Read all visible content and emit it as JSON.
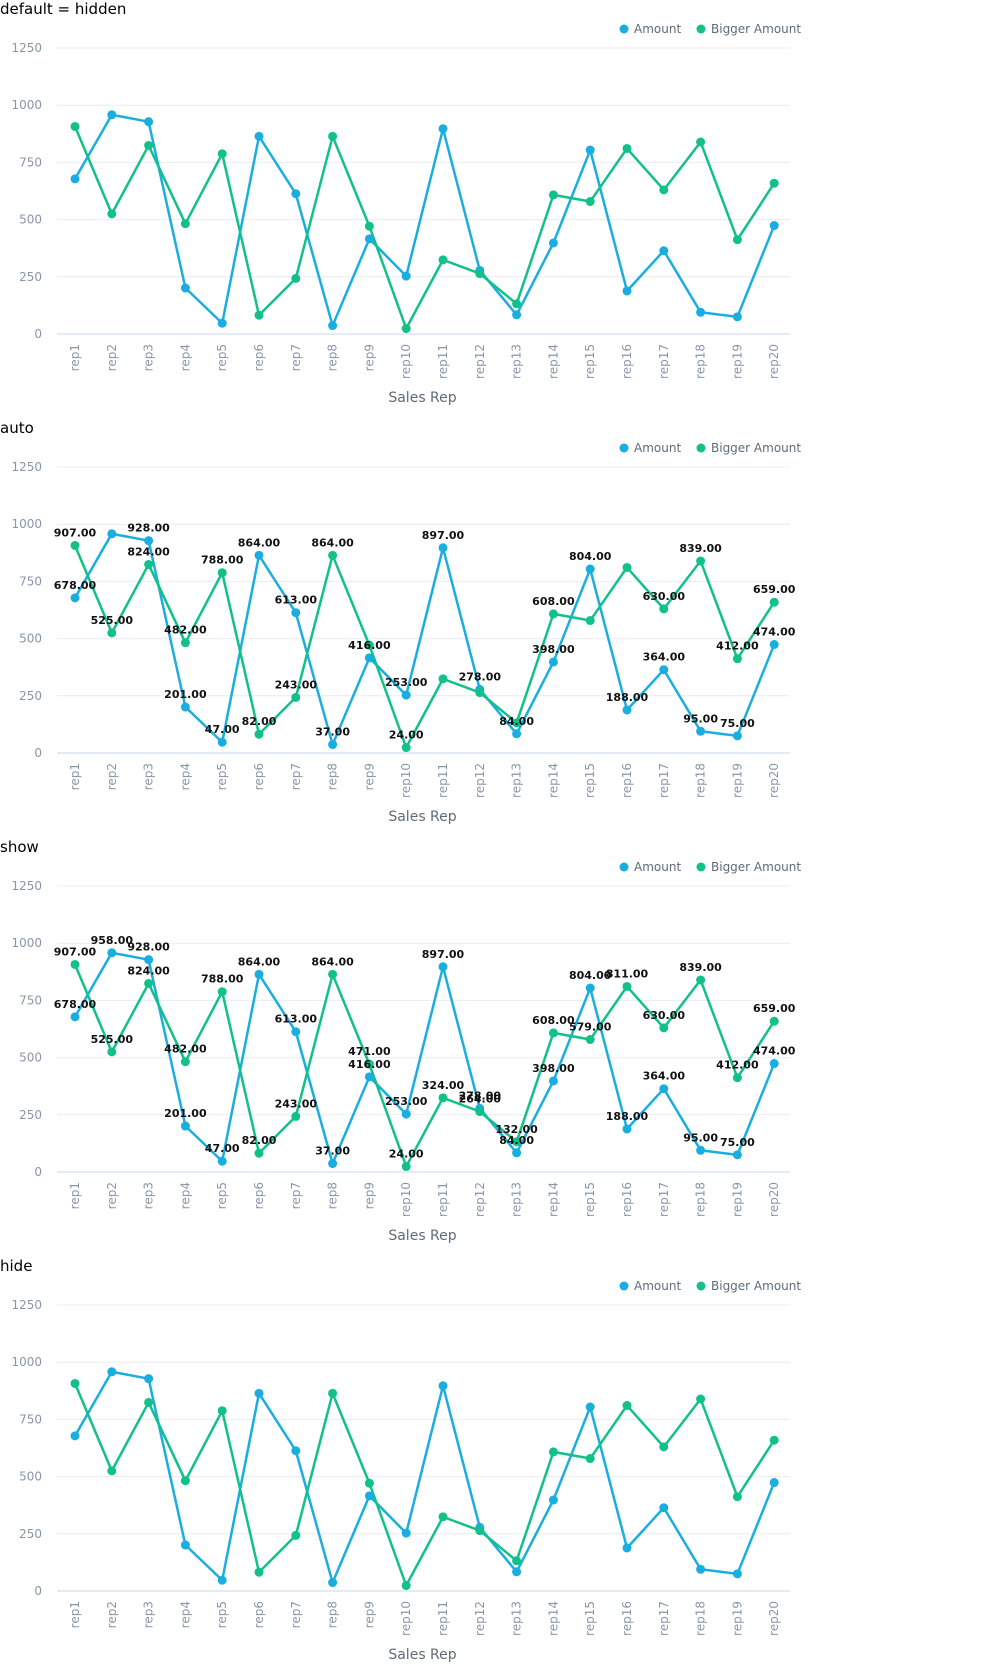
{
  "chart_data": [
    {
      "type": "line",
      "title": "default = hidden",
      "label_mode": "none",
      "categories": [
        "rep1",
        "rep2",
        "rep3",
        "rep4",
        "rep5",
        "rep6",
        "rep7",
        "rep8",
        "rep9",
        "rep10",
        "rep11",
        "rep12",
        "rep13",
        "rep14",
        "rep15",
        "rep16",
        "rep17",
        "rep18",
        "rep19",
        "rep20"
      ],
      "series": [
        {
          "name": "Amount",
          "color": "#1aaee0",
          "values": [
            678,
            958,
            928,
            201,
            47,
            864,
            613,
            37,
            416,
            253,
            897,
            278,
            84,
            398,
            804,
            188,
            364,
            95,
            75,
            474
          ]
        },
        {
          "name": "Bigger Amount",
          "color": "#12c08a",
          "values": [
            907,
            525,
            824,
            482,
            788,
            82,
            243,
            864,
            471,
            24,
            324,
            264,
            132,
            608,
            579,
            811,
            630,
            839,
            412,
            659
          ]
        }
      ],
      "xlabel": "Sales Rep",
      "ylabel": "",
      "ylim": [
        0,
        1250
      ],
      "yticks": [
        "0",
        "250",
        "500",
        "750",
        "1000",
        "1250"
      ],
      "grid": true,
      "legend": "top-right"
    },
    {
      "type": "line",
      "title": "auto",
      "label_mode": "auto",
      "categories": [
        "rep1",
        "rep2",
        "rep3",
        "rep4",
        "rep5",
        "rep6",
        "rep7",
        "rep8",
        "rep9",
        "rep10",
        "rep11",
        "rep12",
        "rep13",
        "rep14",
        "rep15",
        "rep16",
        "rep17",
        "rep18",
        "rep19",
        "rep20"
      ],
      "series": [
        {
          "name": "Amount",
          "color": "#1aaee0",
          "values": [
            678,
            958,
            928,
            201,
            47,
            864,
            613,
            37,
            416,
            253,
            897,
            278,
            84,
            398,
            804,
            188,
            364,
            95,
            75,
            474
          ]
        },
        {
          "name": "Bigger Amount",
          "color": "#12c08a",
          "values": [
            907,
            525,
            824,
            482,
            788,
            82,
            243,
            864,
            471,
            24,
            324,
            264,
            132,
            608,
            579,
            811,
            630,
            839,
            412,
            659
          ]
        }
      ],
      "labels": [
        {
          "series": 0,
          "idx": 0,
          "text": "678.00"
        },
        {
          "series": 0,
          "idx": 2,
          "text": "928.00"
        },
        {
          "series": 0,
          "idx": 3,
          "text": "201.00"
        },
        {
          "series": 0,
          "idx": 4,
          "text": "47.00"
        },
        {
          "series": 0,
          "idx": 5,
          "text": "864.00"
        },
        {
          "series": 0,
          "idx": 6,
          "text": "613.00"
        },
        {
          "series": 0,
          "idx": 7,
          "text": "37.00"
        },
        {
          "series": 0,
          "idx": 8,
          "text": "416.00"
        },
        {
          "series": 0,
          "idx": 9,
          "text": "253.00"
        },
        {
          "series": 0,
          "idx": 10,
          "text": "897.00"
        },
        {
          "series": 0,
          "idx": 11,
          "text": "278.00"
        },
        {
          "series": 0,
          "idx": 12,
          "text": "84.00"
        },
        {
          "series": 0,
          "idx": 13,
          "text": "398.00"
        },
        {
          "series": 0,
          "idx": 14,
          "text": "804.00"
        },
        {
          "series": 0,
          "idx": 15,
          "text": "188.00"
        },
        {
          "series": 0,
          "idx": 16,
          "text": "364.00"
        },
        {
          "series": 0,
          "idx": 17,
          "text": "95.00"
        },
        {
          "series": 0,
          "idx": 18,
          "text": "75.00"
        },
        {
          "series": 0,
          "idx": 19,
          "text": "474.00"
        },
        {
          "series": 1,
          "idx": 0,
          "text": "907.00"
        },
        {
          "series": 1,
          "idx": 1,
          "text": "525.00"
        },
        {
          "series": 1,
          "idx": 2,
          "text": "824.00"
        },
        {
          "series": 1,
          "idx": 3,
          "text": "482.00"
        },
        {
          "series": 1,
          "idx": 4,
          "text": "788.00"
        },
        {
          "series": 1,
          "idx": 5,
          "text": "82.00"
        },
        {
          "series": 1,
          "idx": 6,
          "text": "243.00"
        },
        {
          "series": 1,
          "idx": 7,
          "text": "864.00"
        },
        {
          "series": 1,
          "idx": 9,
          "text": "24.00"
        },
        {
          "series": 1,
          "idx": 13,
          "text": "608.00"
        },
        {
          "series": 1,
          "idx": 16,
          "text": "630.00"
        },
        {
          "series": 1,
          "idx": 17,
          "text": "839.00"
        },
        {
          "series": 1,
          "idx": 18,
          "text": "412.00"
        },
        {
          "series": 1,
          "idx": 19,
          "text": "659.00"
        }
      ],
      "xlabel": "Sales Rep",
      "ylabel": "",
      "ylim": [
        0,
        1250
      ],
      "yticks": [
        "0",
        "250",
        "500",
        "750",
        "1000",
        "1250"
      ],
      "grid": true,
      "legend": "top-right"
    },
    {
      "type": "line",
      "title": "show",
      "label_mode": "all",
      "categories": [
        "rep1",
        "rep2",
        "rep3",
        "rep4",
        "rep5",
        "rep6",
        "rep7",
        "rep8",
        "rep9",
        "rep10",
        "rep11",
        "rep12",
        "rep13",
        "rep14",
        "rep15",
        "rep16",
        "rep17",
        "rep18",
        "rep19",
        "rep20"
      ],
      "series": [
        {
          "name": "Amount",
          "color": "#1aaee0",
          "values": [
            678,
            958,
            928,
            201,
            47,
            864,
            613,
            37,
            416,
            253,
            897,
            278,
            84,
            398,
            804,
            188,
            364,
            95,
            75,
            474
          ]
        },
        {
          "name": "Bigger Amount",
          "color": "#12c08a",
          "values": [
            907,
            525,
            824,
            482,
            788,
            82,
            243,
            864,
            471,
            24,
            324,
            264,
            132,
            608,
            579,
            811,
            630,
            839,
            412,
            659
          ]
        }
      ],
      "series_labels": [
        [
          "678.00",
          "958.00",
          "928.00",
          "201.00",
          "47.00",
          "864.00",
          "613.00",
          "37.00",
          "416.00",
          "253.00",
          "897.00",
          "278.00",
          "84.00",
          "398.00",
          "804.00",
          "188.00",
          "364.00",
          "95.00",
          "75.00",
          "474.00"
        ],
        [
          "907.00",
          "525.00",
          "824.00",
          "482.00",
          "788.00",
          "82.00",
          "243.00",
          "864.00",
          "471.00",
          "24.00",
          "324.00",
          "264.00",
          "132.00",
          "608.00",
          "579.00",
          "811.00",
          "630.00",
          "839.00",
          "412.00",
          "659.00"
        ]
      ],
      "xlabel": "Sales Rep",
      "ylabel": "",
      "ylim": [
        0,
        1250
      ],
      "yticks": [
        "0",
        "250",
        "500",
        "750",
        "1000",
        "1250"
      ],
      "grid": true,
      "legend": "top-right"
    },
    {
      "type": "line",
      "title": "hide",
      "label_mode": "none",
      "categories": [
        "rep1",
        "rep2",
        "rep3",
        "rep4",
        "rep5",
        "rep6",
        "rep7",
        "rep8",
        "rep9",
        "rep10",
        "rep11",
        "rep12",
        "rep13",
        "rep14",
        "rep15",
        "rep16",
        "rep17",
        "rep18",
        "rep19",
        "rep20"
      ],
      "series": [
        {
          "name": "Amount",
          "color": "#1aaee0",
          "values": [
            678,
            958,
            928,
            201,
            47,
            864,
            613,
            37,
            416,
            253,
            897,
            278,
            84,
            398,
            804,
            188,
            364,
            95,
            75,
            474
          ]
        },
        {
          "name": "Bigger Amount",
          "color": "#12c08a",
          "values": [
            907,
            525,
            824,
            482,
            788,
            82,
            243,
            864,
            471,
            24,
            324,
            264,
            132,
            608,
            579,
            811,
            630,
            839,
            412,
            659
          ]
        }
      ],
      "xlabel": "Sales Rep",
      "ylabel": "",
      "ylim": [
        0,
        1250
      ],
      "yticks": [
        "0",
        "250",
        "500",
        "750",
        "1000",
        "1250"
      ],
      "grid": true,
      "legend": "top-right"
    }
  ]
}
